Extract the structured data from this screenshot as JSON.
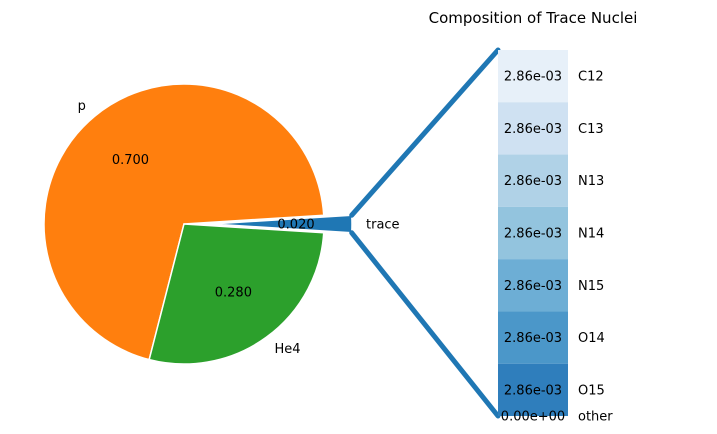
{
  "chart_data": [
    {
      "type": "pie",
      "title": "",
      "slices": [
        {
          "label": "p",
          "value": 0.7,
          "value_label": "0.700",
          "color": "#ff7f0e"
        },
        {
          "label": "He4",
          "value": 0.28,
          "value_label": "0.280",
          "color": "#2ca02c"
        },
        {
          "label": "trace",
          "value": 0.02,
          "value_label": "0.020",
          "color": "#1f77b4",
          "exploded": true
        }
      ]
    },
    {
      "type": "bar",
      "stacked": true,
      "title": "Composition of Trace Nuclei",
      "categories": [
        "C12",
        "C13",
        "N13",
        "N14",
        "N15",
        "O14",
        "O15",
        "other"
      ],
      "values": [
        0.00286,
        0.00286,
        0.00286,
        0.00286,
        0.00286,
        0.00286,
        0.00286,
        0.0
      ],
      "value_labels": [
        "2.86e-03",
        "2.86e-03",
        "2.86e-03",
        "2.86e-03",
        "2.86e-03",
        "2.86e-03",
        "2.86e-03",
        "0.00e+00"
      ],
      "colors": [
        "#e7f0f9",
        "#cfe1f2",
        "#b0d2e7",
        "#93c4de",
        "#6daed5",
        "#4b97c9",
        "#2f7ebc",
        "#1764ab"
      ],
      "connector_color": "#1f77b4"
    }
  ]
}
